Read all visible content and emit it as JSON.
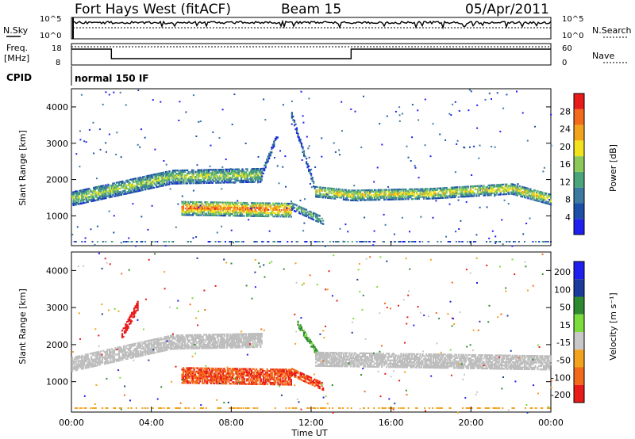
{
  "header": {
    "station": "Fort Hays West (fitACF)",
    "beam": "Beam 15",
    "date": "05/Apr/2011"
  },
  "summary_panels": {
    "nsky_label": "N.Sky",
    "nsky_ticks": [
      "10^5",
      "10^0"
    ],
    "nsearch_label": "N.Search",
    "nsearch_ticks": [
      "10^5",
      "10^0"
    ],
    "freq_label_line1": "Freq.",
    "freq_label_line2": "[MHz]",
    "freq_ticks": [
      "18",
      "8"
    ],
    "nave_label": "Nave",
    "nave_ticks": [
      "60",
      "0"
    ],
    "cpid_label": "CPID",
    "cpid_value": "normal 150 IF"
  },
  "colors": {
    "power_scale": [
      "#1f1ff0",
      "#1d4fa8",
      "#3c7aa0",
      "#4aa57a",
      "#8cc85a",
      "#f3e31c",
      "#f3a21c",
      "#f26a1a",
      "#e81a1a"
    ],
    "velocity_scale": [
      "#1f1ff0",
      "#1a3a9c",
      "#2f8a2f",
      "#7bdc3c",
      "#c8c8c8",
      "#f3a21c",
      "#f26a1a",
      "#e81a1a"
    ],
    "ground_scatter": "#bdbdbd"
  },
  "chart_data": [
    {
      "type": "heatmap",
      "name": "power",
      "ylabel": "Slant Range [km]",
      "yticks": [
        1000,
        2000,
        3000,
        4000
      ],
      "ylim": [
        180,
        4500
      ],
      "xlim": [
        0,
        24
      ],
      "colorbar": {
        "label": "Power [dB]",
        "ticks": [
          4,
          8,
          12,
          16,
          20,
          24,
          28
        ],
        "range": [
          0,
          32
        ]
      },
      "regions": [
        {
          "t": [
            0,
            5,
            9.5
          ],
          "center": [
            1500,
            2100,
            2150
          ],
          "width": 380,
          "value": 12
        },
        {
          "t": [
            9.5,
            10.3
          ],
          "center": [
            2200,
            3300
          ],
          "width": 180,
          "value": 6
        },
        {
          "t": [
            5.5,
            11
          ],
          "center": [
            1250,
            1200
          ],
          "width": 400,
          "value": 18
        },
        {
          "t": [
            11,
            12.6
          ],
          "center": [
            1300,
            900
          ],
          "width": 220,
          "value": 10
        },
        {
          "t": [
            11,
            12.2
          ],
          "center": [
            3800,
            1700
          ],
          "width": 150,
          "value": 6
        },
        {
          "t": [
            12.2,
            14,
            18,
            22,
            24
          ],
          "center": [
            1700,
            1600,
            1650,
            1780,
            1480
          ],
          "width": 300,
          "value": 14
        }
      ]
    },
    {
      "type": "heatmap",
      "name": "velocity",
      "ylabel": "Slant Range [km]",
      "yticks": [
        1000,
        2000,
        3000,
        4000
      ],
      "ylim": [
        180,
        4500
      ],
      "xlim": [
        0,
        24
      ],
      "xticks": [
        "00:00",
        "04:00",
        "08:00",
        "12:00",
        "16:00",
        "20:00",
        "00:00"
      ],
      "xlabel": "Time UT",
      "colorbar": {
        "label": "Velocity [m s⁻¹]",
        "ticks": [
          "200",
          "100",
          "50",
          "15",
          "-15",
          "-50",
          "-100",
          "-200"
        ]
      },
      "regions": [
        {
          "t": [
            0,
            5,
            9.5
          ],
          "center": [
            1500,
            2100,
            2150
          ],
          "width": 380,
          "value": 0,
          "ground": true
        },
        {
          "t": [
            5.5,
            11
          ],
          "center": [
            1200,
            1150
          ],
          "width": 420,
          "value": -70
        },
        {
          "t": [
            11,
            12.6
          ],
          "center": [
            1300,
            900
          ],
          "width": 220,
          "value": -70
        },
        {
          "t": [
            11.3,
            12.4
          ],
          "center": [
            2600,
            1700
          ],
          "width": 180,
          "value": 40
        },
        {
          "t": [
            12.2,
            24
          ],
          "center": [
            1650,
            1550
          ],
          "width": 400,
          "value": 0,
          "ground": true
        },
        {
          "t": [
            2.5,
            3.3
          ],
          "center": [
            2300,
            3100
          ],
          "width": 250,
          "value": -220
        }
      ]
    }
  ]
}
